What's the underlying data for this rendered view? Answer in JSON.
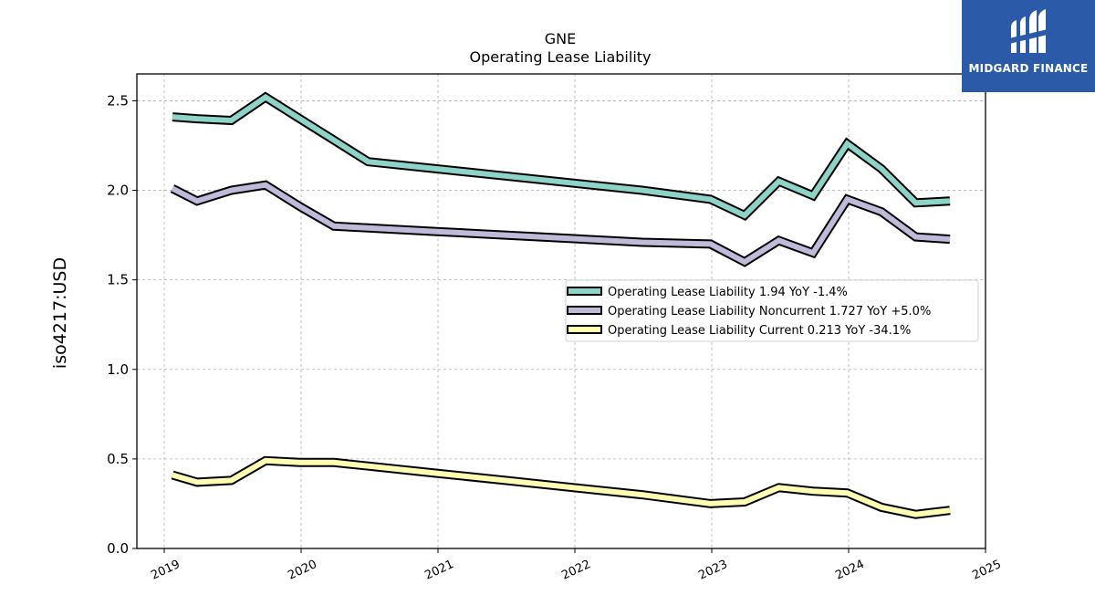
{
  "brand": {
    "name": "MIDGARD FINANCE",
    "color": "#2a5aa8"
  },
  "chart_data": {
    "type": "line",
    "title": "GNE",
    "subtitle": "Operating Lease Liability",
    "xlabel": "",
    "ylabel": "iso4217:USD",
    "xlim": [
      2018.8,
      2025.0
    ],
    "ylim": [
      0.0,
      2.65
    ],
    "xticks": [
      2019,
      2020,
      2021,
      2022,
      2023,
      2024,
      2025
    ],
    "yticks": [
      0.0,
      0.5,
      1.0,
      1.5,
      2.0,
      2.5
    ],
    "ytick_labels": [
      "0.0",
      "0.5",
      "1.0",
      "1.5",
      "2.0",
      "2.5"
    ],
    "grid": true,
    "legend_position": "center-right",
    "series": [
      {
        "name": "Operating Lease Liability",
        "legend": "Operating Lease Liability  1.94 YoY -1.4%",
        "color": "#8dd3c7",
        "x": [
          2019.06,
          2019.24,
          2019.49,
          2019.74,
          2019.99,
          2020.24,
          2020.49,
          2020.99,
          2021.49,
          2021.99,
          2022.49,
          2022.99,
          2023.24,
          2023.49,
          2023.74,
          2023.99,
          2024.24,
          2024.49,
          2024.74
        ],
        "y": [
          2.41,
          2.4,
          2.39,
          2.52,
          2.4,
          2.28,
          2.16,
          2.12,
          2.08,
          2.04,
          2.0,
          1.95,
          1.86,
          2.05,
          1.97,
          2.26,
          2.12,
          1.93,
          1.94
        ]
      },
      {
        "name": "Operating Lease Liability Noncurrent",
        "legend": "Operating Lease Liability Noncurrent  1.727 YoY +5.0%",
        "color": "#bebada",
        "x": [
          2019.06,
          2019.24,
          2019.49,
          2019.74,
          2019.99,
          2020.24,
          2020.49,
          2020.99,
          2021.49,
          2021.99,
          2022.49,
          2022.99,
          2023.24,
          2023.49,
          2023.74,
          2023.99,
          2024.24,
          2024.49,
          2024.74
        ],
        "y": [
          2.01,
          1.94,
          2.0,
          2.03,
          1.91,
          1.8,
          1.79,
          1.77,
          1.75,
          1.73,
          1.71,
          1.7,
          1.6,
          1.72,
          1.65,
          1.95,
          1.88,
          1.74,
          1.727
        ]
      },
      {
        "name": "Operating Lease Liability Current",
        "legend": "Operating Lease Liability Current  0.213 YoY -34.1%",
        "color": "#ffffb3",
        "x": [
          2019.06,
          2019.24,
          2019.49,
          2019.74,
          2019.99,
          2020.24,
          2020.49,
          2020.99,
          2021.49,
          2021.99,
          2022.49,
          2022.99,
          2023.24,
          2023.49,
          2023.74,
          2023.99,
          2024.24,
          2024.49,
          2024.74
        ],
        "y": [
          0.41,
          0.37,
          0.38,
          0.49,
          0.48,
          0.48,
          0.46,
          0.42,
          0.38,
          0.34,
          0.3,
          0.25,
          0.26,
          0.34,
          0.32,
          0.31,
          0.23,
          0.19,
          0.213
        ]
      }
    ]
  }
}
